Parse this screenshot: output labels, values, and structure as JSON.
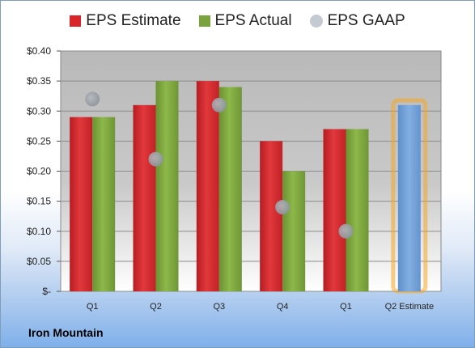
{
  "chart_data": {
    "type": "bar",
    "categories": [
      "Q1",
      "Q2",
      "Q3",
      "Q4",
      "Q1",
      "Q2 Estimate"
    ],
    "series": [
      {
        "name": "EPS Estimate",
        "values": [
          0.29,
          0.31,
          0.35,
          0.25,
          0.27,
          null
        ],
        "color": "#d9262b"
      },
      {
        "name": "EPS Actual",
        "values": [
          0.29,
          0.35,
          0.34,
          0.2,
          0.27,
          null
        ],
        "color": "#7aa33d"
      },
      {
        "name": "EPS GAAP",
        "values": [
          0.32,
          0.22,
          0.31,
          0.14,
          0.1,
          null
        ],
        "color": "#9aa3ad",
        "marker": "circle"
      }
    ],
    "next_estimate": {
      "category": "Q2 Estimate",
      "value": 0.31,
      "color": "#6e9ed6",
      "highlight": "#f5a623"
    },
    "yticks": [
      "$0.40",
      "$0.35",
      "$0.30",
      "$0.25",
      "$0.20",
      "$0.15",
      "$0.10",
      "$0.05",
      "$-"
    ],
    "ylim": [
      0,
      0.4
    ],
    "grid": true,
    "legend": "top"
  },
  "company_name": "Iron Mountain"
}
